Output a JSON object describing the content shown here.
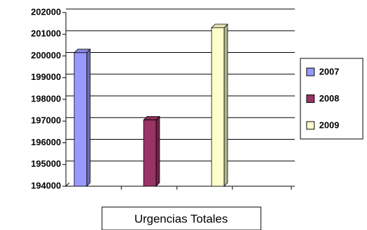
{
  "chart_data": {
    "type": "bar3d",
    "categories": [
      "Urgencias Totales"
    ],
    "series": [
      {
        "name": "2007",
        "color": "#9999ff",
        "values": [
          200150
        ]
      },
      {
        "name": "2008",
        "color": "#993366",
        "values": [
          197050
        ]
      },
      {
        "name": "2009",
        "color": "#ffffcc",
        "values": [
          201300
        ]
      }
    ],
    "ylim": [
      194000,
      202000
    ],
    "yticks": [
      194000,
      195000,
      196000,
      197000,
      198000,
      199000,
      200000,
      201000,
      202000
    ],
    "grid": true,
    "legend": "right"
  }
}
